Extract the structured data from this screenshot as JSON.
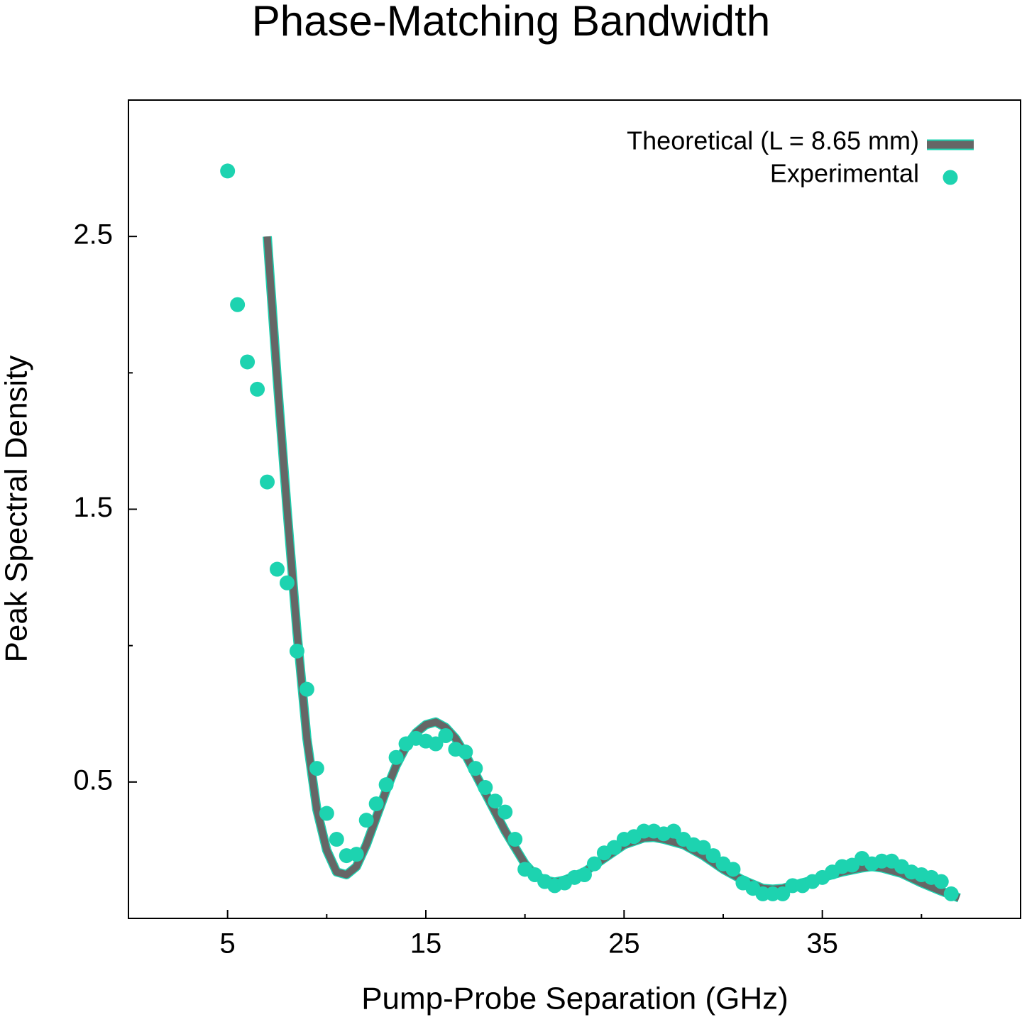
{
  "chart_data": {
    "type": "line",
    "title": "Phase-Matching Bandwidth",
    "x_label": "Pump-Probe Separation (GHz)",
    "y_label": "Peak Spectral Density",
    "xlim": [
      0,
      45
    ],
    "ylim": [
      0,
      3
    ],
    "xticks": [
      5,
      15,
      25,
      35
    ],
    "xminorticks": [
      10,
      20,
      30,
      40
    ],
    "yticks": [
      0.5,
      1.5,
      2.5
    ],
    "yminorticks": [
      1,
      2
    ],
    "legend": "top-right",
    "series": [
      {
        "name": "Theoretical (L = 8.65 mm)",
        "color": "#666666",
        "edge": "#1dd3b0",
        "mark": "line",
        "x": [
          7,
          7.5,
          8,
          8.5,
          9,
          9.5,
          10,
          10.5,
          11,
          11.5,
          12,
          12.5,
          13,
          13.5,
          14,
          14.5,
          15,
          15.5,
          16,
          16.5,
          17,
          17.5,
          18,
          18.5,
          19,
          19.5,
          20,
          20.5,
          21,
          21.5,
          22,
          23,
          24,
          25,
          26,
          26.5,
          27,
          28,
          29,
          30,
          31,
          32,
          32.5,
          33,
          34,
          35,
          36,
          37,
          37.5,
          38,
          39,
          40,
          41,
          41.9
        ],
        "values": [
          2.5,
          1.98,
          1.5,
          1.05,
          0.66,
          0.4,
          0.25,
          0.17,
          0.16,
          0.19,
          0.27,
          0.37,
          0.47,
          0.56,
          0.63,
          0.68,
          0.71,
          0.72,
          0.7,
          0.66,
          0.6,
          0.53,
          0.46,
          0.39,
          0.32,
          0.26,
          0.2,
          0.16,
          0.14,
          0.133,
          0.14,
          0.17,
          0.22,
          0.27,
          0.295,
          0.297,
          0.29,
          0.27,
          0.23,
          0.18,
          0.14,
          0.11,
          0.107,
          0.11,
          0.13,
          0.15,
          0.17,
          0.185,
          0.19,
          0.185,
          0.165,
          0.13,
          0.1,
          0.075
        ]
      },
      {
        "name": "Experimental",
        "color": "#1dd3b0",
        "mark": "point",
        "x": [
          5,
          5.5,
          6,
          6.5,
          7,
          7.5,
          8,
          8.5,
          9,
          9.5,
          10,
          10.5,
          11,
          11.5,
          12,
          12.5,
          13,
          13.5,
          14,
          14.5,
          15,
          15.5,
          16,
          16.5,
          17,
          17.5,
          18,
          18.5,
          19,
          19.5,
          20,
          20.5,
          21,
          21.5,
          22,
          22.5,
          23,
          23.5,
          24,
          24.5,
          25,
          25.5,
          26,
          26.5,
          27,
          27.5,
          28,
          28.5,
          29,
          29.5,
          30,
          30.5,
          31,
          31.5,
          32,
          32.5,
          33,
          33.5,
          34,
          34.5,
          35,
          35.5,
          36,
          36.5,
          37,
          37.5,
          38,
          38.5,
          39,
          39.5,
          40,
          40.5,
          41,
          41.5
        ],
        "values": [
          2.74,
          2.25,
          2.04,
          1.94,
          1.6,
          1.28,
          1.23,
          0.98,
          0.84,
          0.55,
          0.385,
          0.29,
          0.23,
          0.235,
          0.36,
          0.42,
          0.49,
          0.59,
          0.64,
          0.66,
          0.65,
          0.64,
          0.67,
          0.62,
          0.61,
          0.55,
          0.48,
          0.43,
          0.39,
          0.29,
          0.18,
          0.16,
          0.135,
          0.12,
          0.13,
          0.15,
          0.16,
          0.2,
          0.24,
          0.26,
          0.29,
          0.3,
          0.32,
          0.32,
          0.31,
          0.32,
          0.29,
          0.27,
          0.26,
          0.23,
          0.2,
          0.18,
          0.13,
          0.11,
          0.09,
          0.09,
          0.09,
          0.12,
          0.12,
          0.135,
          0.15,
          0.17,
          0.19,
          0.195,
          0.22,
          0.2,
          0.21,
          0.21,
          0.19,
          0.17,
          0.16,
          0.15,
          0.135,
          0.09
        ]
      }
    ]
  }
}
